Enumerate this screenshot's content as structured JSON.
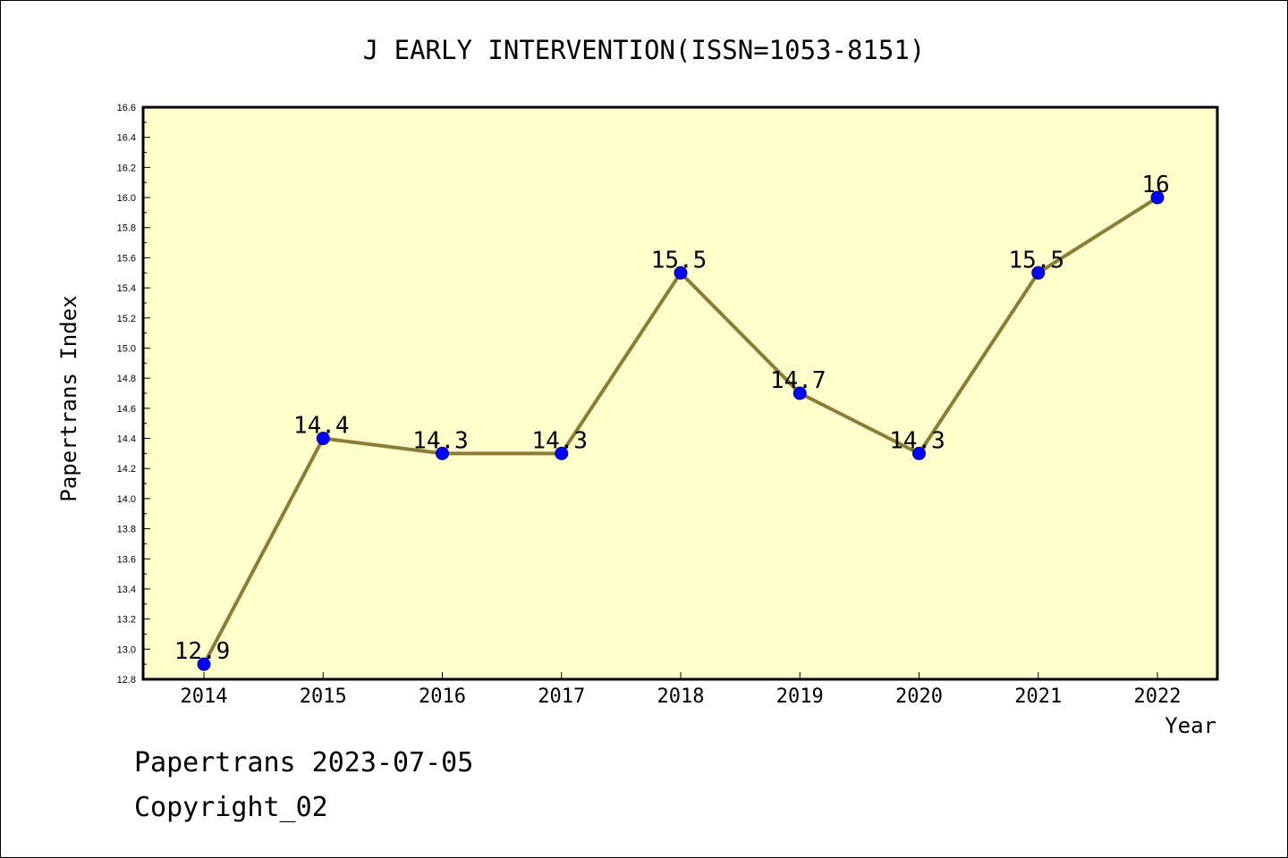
{
  "colors": {
    "plot_background": "#ffffcc",
    "line": "#8b7d35",
    "marker": "#0000ff",
    "axis": "#000000"
  },
  "chart_data": {
    "type": "line",
    "title": "J EARLY INTERVENTION(ISSN=1053-8151)",
    "xlabel": "Year",
    "ylabel": "Papertrans Index",
    "x": [
      "2014",
      "2015",
      "2016",
      "2017",
      "2018",
      "2019",
      "2020",
      "2021",
      "2022"
    ],
    "series": [
      {
        "values": [
          12.9,
          14.4,
          14.3,
          14.3,
          15.5,
          14.7,
          14.3,
          15.5,
          16
        ],
        "labels": [
          "12.9",
          "14.4",
          "14.3",
          "14.3",
          "15.5",
          "14.7",
          "14.3",
          "15.5",
          "16"
        ]
      }
    ],
    "ylim": [
      12.8,
      16.6
    ],
    "yticks": [
      "12.8",
      "13.0",
      "13.2",
      "13.4",
      "13.6",
      "13.8",
      "14.0",
      "14.2",
      "14.4",
      "14.6",
      "14.8",
      "15.0",
      "15.2",
      "15.4",
      "15.6",
      "15.8",
      "16.0",
      "16.2",
      "16.4",
      "16.6"
    ],
    "grid": false,
    "legend": "none"
  },
  "footer": {
    "line1": "Papertrans 2023-07-05",
    "line2": "Copyright_02"
  }
}
